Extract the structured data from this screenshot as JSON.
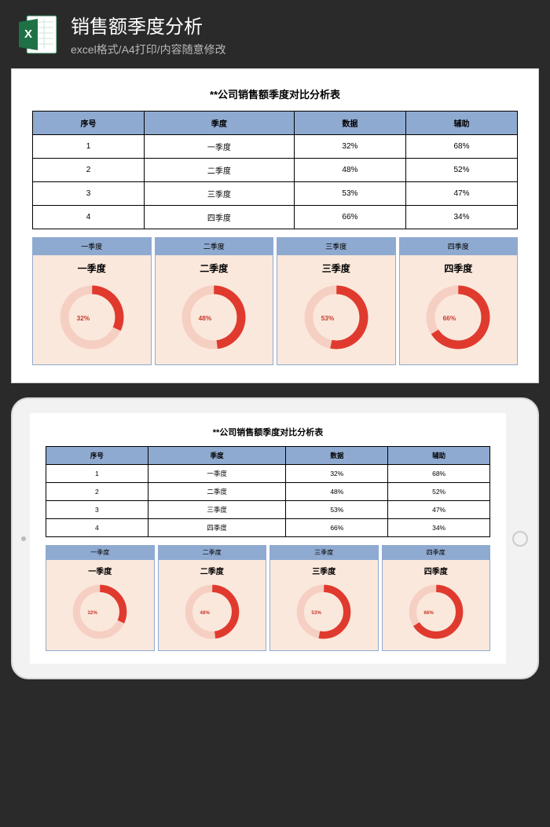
{
  "header": {
    "title": "销售额季度分析",
    "subtitle": "excel格式/A4打印/内容随意修改",
    "icon_accent": "#1e7145"
  },
  "document": {
    "title": "**公司销售额季度对比分析表",
    "table": {
      "headers": [
        "序号",
        "季度",
        "数据",
        "辅助"
      ],
      "header_bg": "#8faad0",
      "border_color": "#000000",
      "rows": [
        {
          "seq": "1",
          "quarter": "一季度",
          "data": "32%",
          "aux": "68%"
        },
        {
          "seq": "2",
          "quarter": "二季度",
          "data": "48%",
          "aux": "52%"
        },
        {
          "seq": "3",
          "quarter": "三季度",
          "data": "53%",
          "aux": "47%"
        },
        {
          "seq": "4",
          "quarter": "四季度",
          "data": "66%",
          "aux": "34%"
        }
      ]
    },
    "charts": {
      "type": "donut",
      "card_bg": "#fbe8dc",
      "tab_bg": "#8faad0",
      "ring_fill_color": "#e03a2f",
      "ring_empty_color": "#f6cfc3",
      "pct_text_color": "#c63a2b",
      "ring_thickness": 12,
      "ring_radius": 38,
      "items": [
        {
          "tab": "一季度",
          "label": "一季度",
          "pct": 32,
          "pct_label": "32%"
        },
        {
          "tab": "二季度",
          "label": "二季度",
          "pct": 48,
          "pct_label": "48%"
        },
        {
          "tab": "三季度",
          "label": "三季度",
          "pct": 53,
          "pct_label": "53%"
        },
        {
          "tab": "四季度",
          "label": "四季度",
          "pct": 66,
          "pct_label": "66%"
        }
      ]
    }
  }
}
